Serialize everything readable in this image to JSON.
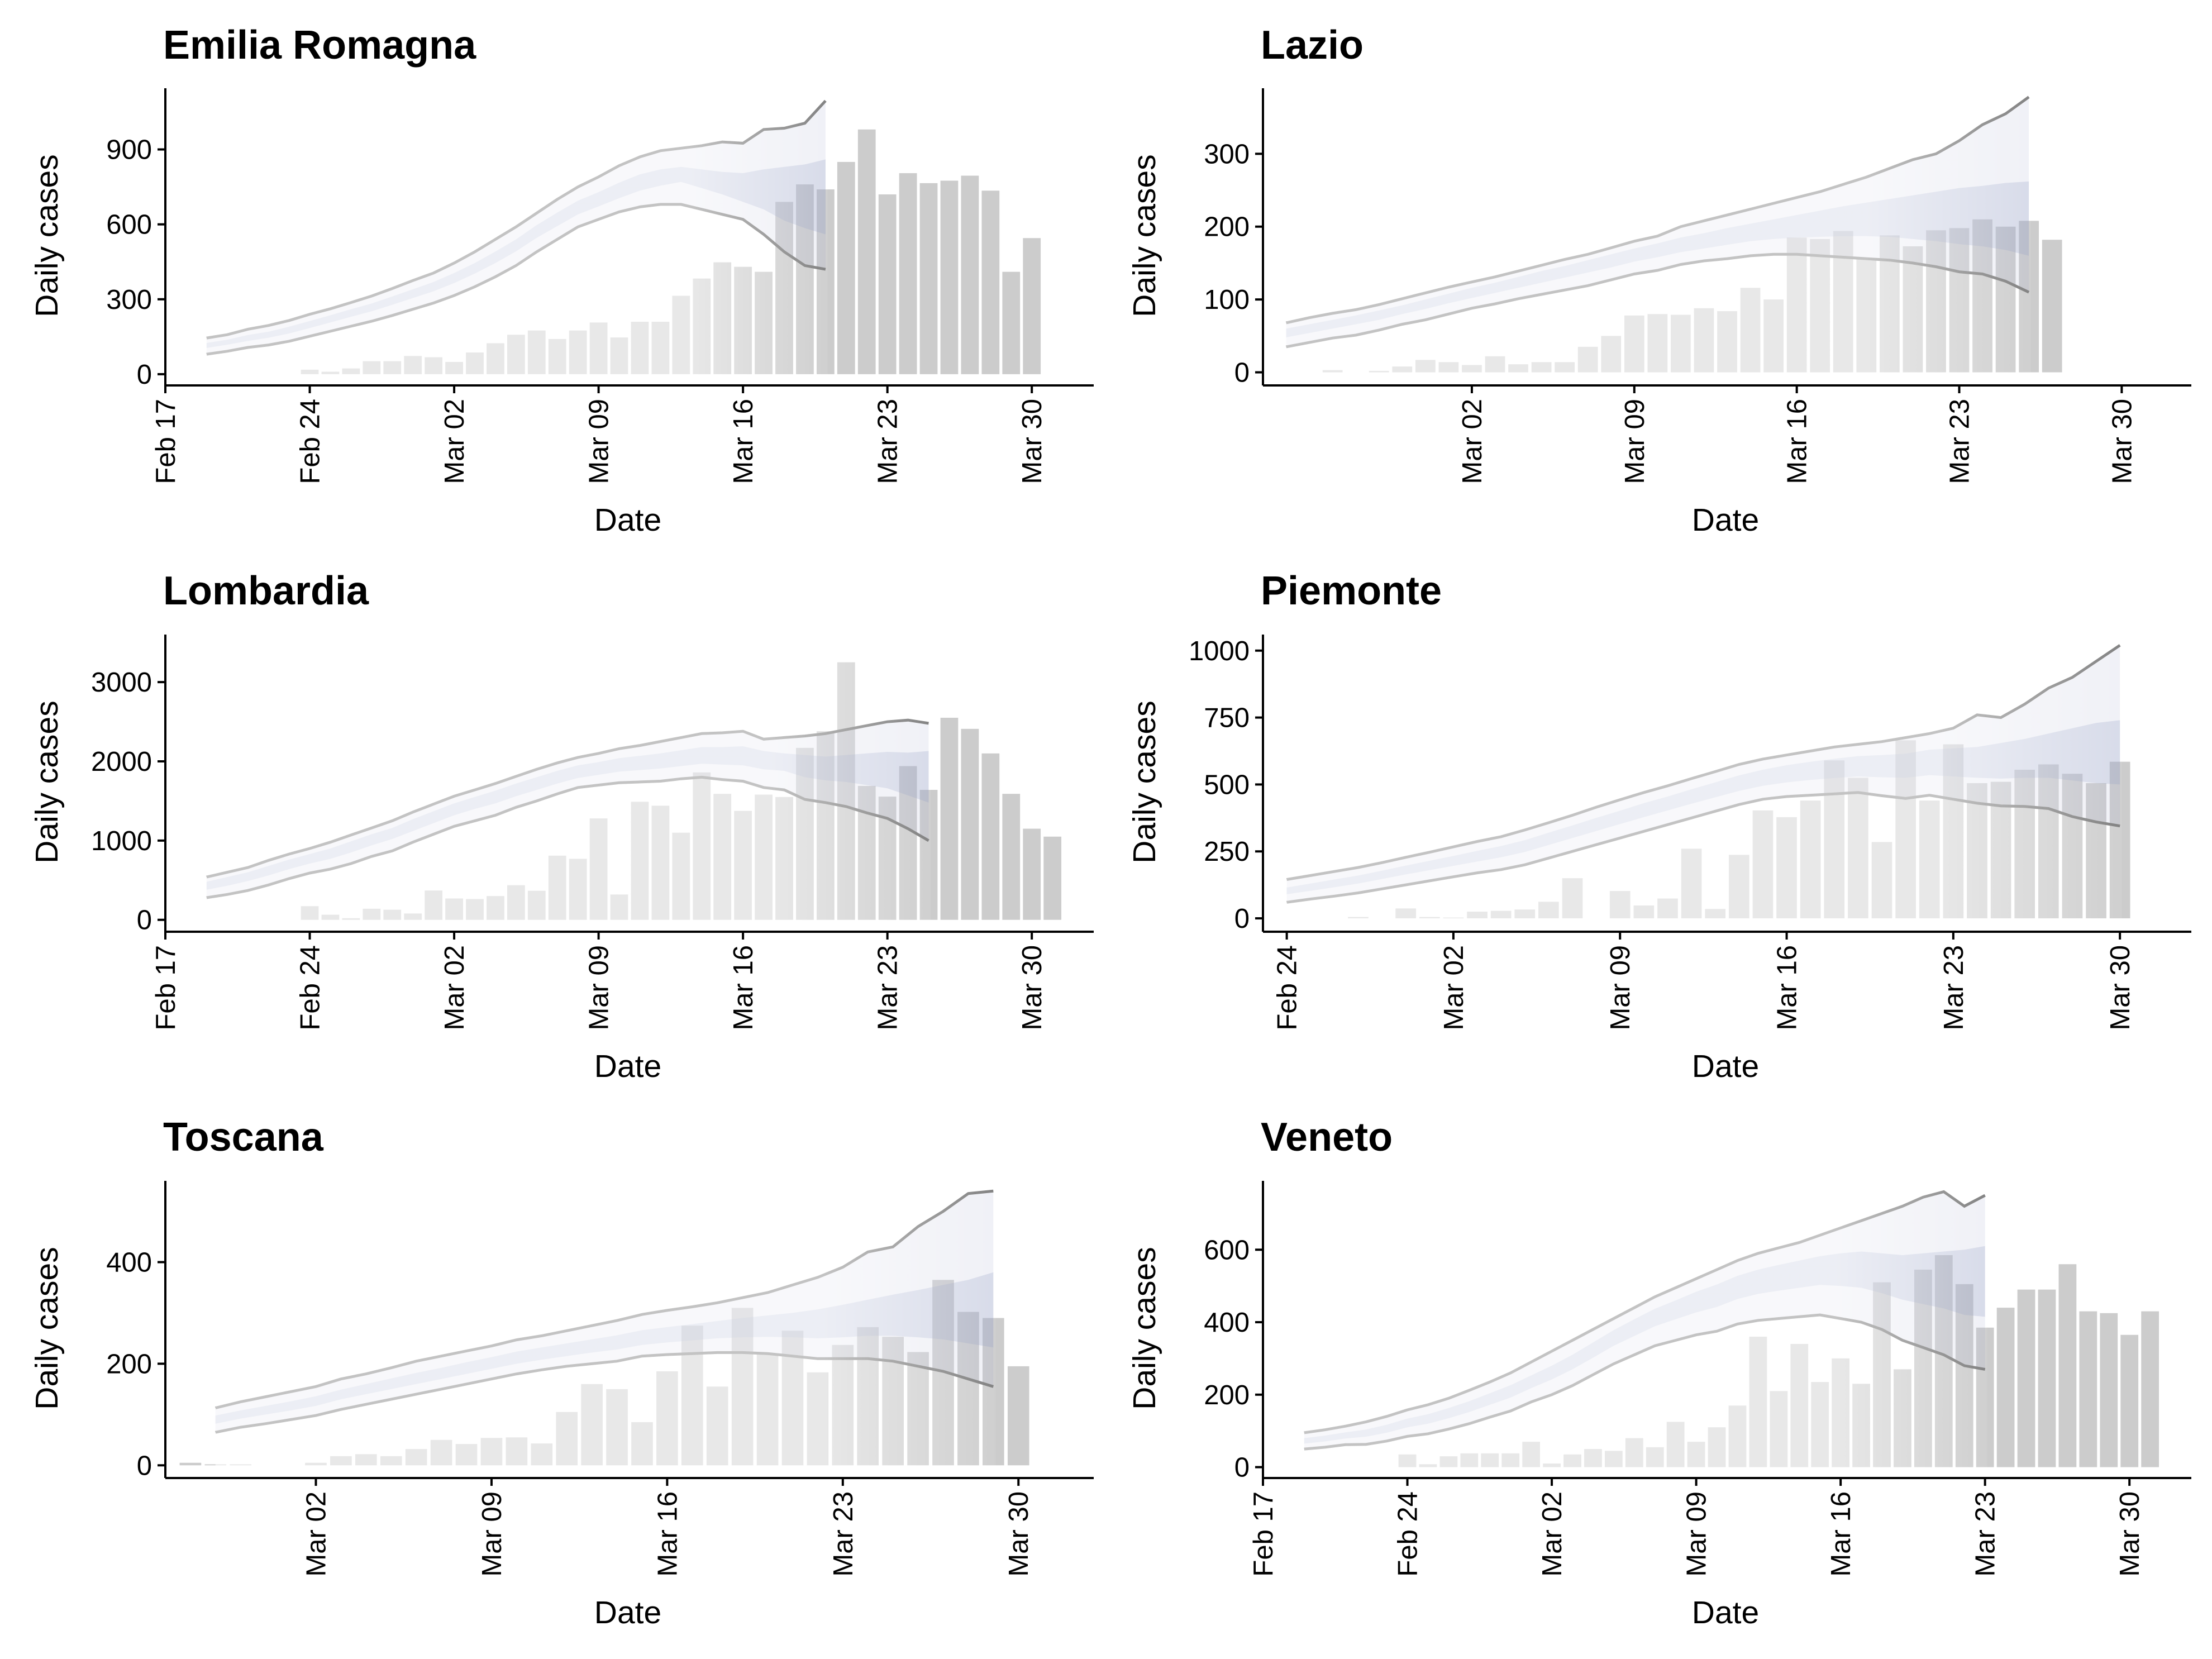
{
  "figure": {
    "ylabel": "Daily cases",
    "xlabel": "Date",
    "bar_color": "#cccccc",
    "band_color": "#8c95c2",
    "line_color": "#7a7a7a"
  },
  "chart_data": [
    {
      "type": "bar",
      "title": "Emilia Romagna",
      "xlabel": "Date",
      "ylabel": "Daily cases",
      "x_ticks": [
        "Feb 17",
        "Feb 24",
        "Mar 02",
        "Mar 09",
        "Mar 16",
        "Mar 23",
        "Mar 30"
      ],
      "y_ticks": [
        0,
        300,
        600,
        900
      ],
      "xlim": [
        "2020-02-17",
        "2020-04-02"
      ],
      "ylim": [
        -45,
        1145
      ],
      "bars": {
        "start": "2020-02-24",
        "values": [
          18,
          10,
          23,
          52,
          52,
          73,
          68,
          49,
          87,
          124,
          158,
          175,
          141,
          175,
          207,
          147,
          210,
          210,
          314,
          383,
          448,
          430,
          410,
          690,
          760,
          740,
          850,
          980,
          720,
          805,
          765,
          775,
          795,
          735,
          410,
          545
        ]
      },
      "estimate": {
        "start": "2020-02-19",
        "lower90": [
          80,
          92,
          107,
          117,
          132,
          152,
          172,
          192,
          212,
          235,
          260,
          285,
          315,
          350,
          390,
          435,
          490,
          540,
          590,
          620,
          650,
          670,
          680,
          680,
          660,
          640,
          620,
          560,
          490,
          435,
          420
        ],
        "lower50": [
          105,
          118,
          133,
          146,
          163,
          185,
          207,
          230,
          252,
          278,
          305,
          332,
          365,
          403,
          445,
          492,
          546,
          593,
          640,
          672,
          705,
          735,
          755,
          770,
          745,
          720,
          690,
          660,
          615,
          585,
          560
        ],
        "upper50": [
          125,
          138,
          157,
          170,
          190,
          213,
          236,
          260,
          283,
          311,
          340,
          369,
          405,
          445,
          491,
          540,
          597,
          647,
          695,
          729,
          767,
          800,
          820,
          830,
          820,
          810,
          805,
          820,
          830,
          840,
          860
        ],
        "upper90": [
          145,
          158,
          180,
          195,
          215,
          240,
          262,
          287,
          313,
          343,
          375,
          405,
          445,
          490,
          540,
          590,
          645,
          700,
          750,
          790,
          835,
          870,
          895,
          905,
          915,
          930,
          925,
          980,
          985,
          1005,
          1095
        ]
      }
    },
    {
      "type": "bar",
      "title": "Lazio",
      "xlabel": "Date",
      "ylabel": "Daily cases",
      "x_ticks": [
        "Mar 02",
        "Mar 09",
        "Mar 16",
        "Mar 23",
        "Mar 30"
      ],
      "y_ticks": [
        0,
        100,
        200,
        300
      ],
      "xlim": [
        "2020-02-22",
        "2020-04-02"
      ],
      "ylim": [
        -18,
        390
      ],
      "bars": {
        "start": "2020-02-25",
        "values": [
          3,
          0,
          2,
          8,
          17,
          14,
          10,
          22,
          11,
          14,
          14,
          35,
          50,
          78,
          80,
          79,
          88,
          84,
          116,
          100,
          185,
          183,
          194,
          157,
          188,
          173,
          195,
          198,
          210,
          200,
          208,
          182
        ]
      },
      "estimate": {
        "start": "2020-02-23",
        "lower90": [
          35,
          41,
          47,
          51,
          58,
          66,
          72,
          80,
          88,
          94,
          101,
          107,
          113,
          119,
          127,
          135,
          140,
          148,
          153,
          156,
          160,
          162,
          162,
          160,
          158,
          156,
          154,
          150,
          145,
          138,
          135,
          125,
          110
        ],
        "lower50": [
          48,
          54,
          60,
          66,
          72,
          80,
          87,
          95,
          102,
          109,
          116,
          123,
          130,
          137,
          144,
          152,
          158,
          165,
          170,
          175,
          180,
          183,
          185,
          186,
          187,
          187,
          186,
          183,
          180,
          176,
          173,
          168,
          160
        ],
        "upper50": [
          60,
          66,
          72,
          78,
          85,
          92,
          100,
          108,
          116,
          123,
          131,
          139,
          146,
          154,
          162,
          170,
          177,
          185,
          191,
          198,
          204,
          210,
          216,
          222,
          228,
          233,
          238,
          243,
          248,
          253,
          256,
          260,
          262
        ],
        "upper90": [
          68,
          75,
          81,
          86,
          93,
          101,
          109,
          117,
          124,
          131,
          139,
          147,
          155,
          162,
          171,
          180,
          187,
          200,
          208,
          216,
          224,
          232,
          240,
          248,
          258,
          268,
          280,
          292,
          300,
          318,
          340,
          355,
          378
        ]
      }
    },
    {
      "type": "bar",
      "title": "Lombardia",
      "xlabel": "Date",
      "ylabel": "Daily cases",
      "x_ticks": [
        "Feb 17",
        "Feb 24",
        "Mar 02",
        "Mar 09",
        "Mar 16",
        "Mar 23",
        "Mar 30"
      ],
      "y_ticks": [
        0,
        1000,
        2000,
        3000
      ],
      "xlim": [
        "2020-02-17",
        "2020-04-02"
      ],
      "ylim": [
        -150,
        3600
      ],
      "bars": {
        "start": "2020-02-24",
        "values": [
          172,
          65,
          20,
          140,
          128,
          80,
          370,
          270,
          262,
          300,
          437,
          367,
          810,
          770,
          1280,
          320,
          1490,
          1440,
          1100,
          1860,
          1590,
          1375,
          1580,
          1550,
          2170,
          2380,
          3250,
          1690,
          1555,
          1940,
          1640,
          2550,
          2410,
          2100,
          1590,
          1150,
          1050
        ]
      },
      "estimate": {
        "start": "2020-02-19",
        "lower90": [
          280,
          320,
          370,
          440,
          520,
          590,
          640,
          710,
          800,
          870,
          980,
          1080,
          1180,
          1250,
          1320,
          1420,
          1500,
          1590,
          1670,
          1700,
          1730,
          1740,
          1750,
          1780,
          1800,
          1770,
          1750,
          1670,
          1640,
          1520,
          1480,
          1430,
          1350,
          1280,
          1150,
          1000
        ],
        "lower50": [
          380,
          430,
          490,
          560,
          640,
          710,
          770,
          850,
          940,
          1020,
          1120,
          1220,
          1320,
          1400,
          1470,
          1560,
          1640,
          1720,
          1790,
          1830,
          1870,
          1890,
          1910,
          1940,
          1970,
          1960,
          1950,
          1900,
          1880,
          1800,
          1760,
          1740,
          1700,
          1660,
          1570,
          1480
        ],
        "upper50": [
          480,
          540,
          600,
          680,
          760,
          830,
          900,
          990,
          1080,
          1160,
          1270,
          1370,
          1470,
          1550,
          1630,
          1720,
          1800,
          1880,
          1950,
          1990,
          2040,
          2070,
          2100,
          2140,
          2180,
          2180,
          2190,
          2130,
          2100,
          2080,
          2060,
          2080,
          2100,
          2120,
          2110,
          2130
        ],
        "upper90": [
          540,
          600,
          660,
          750,
          830,
          900,
          980,
          1070,
          1160,
          1250,
          1360,
          1460,
          1560,
          1640,
          1720,
          1810,
          1900,
          1980,
          2050,
          2100,
          2160,
          2200,
          2250,
          2300,
          2350,
          2360,
          2380,
          2280,
          2300,
          2320,
          2350,
          2400,
          2450,
          2500,
          2520,
          2480
        ]
      }
    },
    {
      "type": "bar",
      "title": "Piemonte",
      "xlabel": "Date",
      "ylabel": "Daily cases",
      "x_ticks": [
        "Feb 24",
        "Mar 02",
        "Mar 09",
        "Mar 16",
        "Mar 23",
        "Mar 30"
      ],
      "y_ticks": [
        0,
        250,
        500,
        750,
        1000
      ],
      "xlim": [
        "2020-02-23",
        "2020-04-02"
      ],
      "ylim": [
        -50,
        1060
      ],
      "bars": {
        "start": "2020-02-27",
        "values": [
          5,
          0,
          37,
          5,
          3,
          25,
          28,
          33,
          62,
          150,
          0,
          102,
          48,
          74,
          260,
          35,
          237,
          403,
          378,
          440,
          590,
          525,
          285,
          665,
          440,
          650,
          505,
          510,
          555,
          575,
          540,
          505,
          585
        ]
      },
      "estimate": {
        "start": "2020-02-24",
        "lower90": [
          60,
          72,
          83,
          95,
          110,
          125,
          140,
          155,
          170,
          182,
          200,
          225,
          250,
          275,
          300,
          325,
          350,
          375,
          400,
          425,
          445,
          455,
          460,
          465,
          470,
          458,
          448,
          460,
          445,
          430,
          420,
          418,
          410,
          380,
          360,
          345
        ],
        "lower50": [
          90,
          103,
          116,
          130,
          147,
          164,
          180,
          196,
          212,
          228,
          248,
          274,
          300,
          326,
          352,
          378,
          403,
          428,
          452,
          476,
          495,
          508,
          517,
          524,
          530,
          527,
          525,
          535,
          530,
          525,
          522,
          525,
          525,
          515,
          505,
          500
        ],
        "upper50": [
          115,
          130,
          145,
          160,
          178,
          197,
          215,
          233,
          252,
          270,
          292,
          320,
          347,
          375,
          402,
          430,
          455,
          482,
          508,
          534,
          555,
          572,
          585,
          596,
          606,
          610,
          615,
          630,
          635,
          640,
          655,
          670,
          690,
          710,
          730,
          740
        ],
        "upper90": [
          145,
          160,
          175,
          190,
          208,
          228,
          247,
          267,
          287,
          305,
          330,
          357,
          385,
          415,
          443,
          470,
          495,
          522,
          548,
          575,
          595,
          610,
          625,
          640,
          650,
          660,
          675,
          690,
          710,
          760,
          750,
          800,
          860,
          900,
          960,
          1020
        ]
      }
    },
    {
      "type": "bar",
      "title": "Toscana",
      "xlabel": "Date",
      "ylabel": "Daily cases",
      "x_ticks": [
        "Mar 02",
        "Mar 09",
        "Mar 16",
        "Mar 23",
        "Mar 30"
      ],
      "y_ticks": [
        0,
        200,
        400
      ],
      "xlim": [
        "2020-02-25",
        "2020-04-02"
      ],
      "ylim": [
        -25,
        560
      ],
      "bars": {
        "start": "2020-02-26",
        "values": [
          5,
          2,
          2,
          0,
          0,
          5,
          18,
          22,
          18,
          32,
          50,
          42,
          54,
          55,
          43,
          105,
          160,
          150,
          85,
          185,
          275,
          155,
          310,
          220,
          265,
          183,
          237,
          272,
          253,
          223,
          365,
          302,
          290,
          195
        ]
      },
      "estimate": {
        "start": "2020-02-27",
        "lower90": [
          65,
          75,
          82,
          90,
          98,
          110,
          120,
          130,
          140,
          150,
          160,
          170,
          180,
          188,
          195,
          200,
          205,
          215,
          218,
          220,
          222,
          222,
          220,
          215,
          210,
          210,
          210,
          205,
          195,
          185,
          170,
          155
        ],
        "lower50": [
          82,
          92,
          100,
          108,
          117,
          130,
          140,
          150,
          160,
          170,
          180,
          190,
          200,
          208,
          215,
          222,
          228,
          237,
          242,
          246,
          250,
          252,
          253,
          252,
          250,
          252,
          255,
          255,
          252,
          248,
          240,
          232
        ],
        "upper50": [
          98,
          108,
          117,
          126,
          136,
          149,
          160,
          171,
          182,
          192,
          203,
          213,
          224,
          232,
          240,
          248,
          256,
          266,
          272,
          278,
          284,
          290,
          295,
          300,
          307,
          316,
          326,
          336,
          345,
          355,
          365,
          380
        ],
        "upper90": [
          113,
          125,
          135,
          145,
          155,
          170,
          180,
          192,
          205,
          215,
          225,
          235,
          247,
          255,
          265,
          275,
          285,
          297,
          305,
          312,
          320,
          330,
          340,
          355,
          370,
          390,
          420,
          430,
          470,
          500,
          535,
          540
        ]
      }
    },
    {
      "type": "bar",
      "title": "Veneto",
      "xlabel": "Date",
      "ylabel": "Daily cases",
      "x_ticks": [
        "Feb 17",
        "Feb 24",
        "Mar 02",
        "Mar 09",
        "Mar 16",
        "Mar 23",
        "Mar 30"
      ],
      "y_ticks": [
        0,
        200,
        400,
        600
      ],
      "xlim": [
        "2020-02-17",
        "2020-04-02"
      ],
      "ylim": [
        -30,
        790
      ],
      "bars": {
        "start": "2020-02-24",
        "values": [
          35,
          8,
          30,
          38,
          38,
          38,
          70,
          10,
          35,
          50,
          45,
          80,
          55,
          125,
          70,
          110,
          170,
          360,
          210,
          340,
          235,
          300,
          230,
          510,
          270,
          545,
          585,
          505,
          385,
          440,
          490,
          490,
          560,
          430,
          425,
          365,
          430
        ]
      },
      "estimate": {
        "start": "2020-02-19",
        "lower90": [
          50,
          55,
          62,
          63,
          72,
          85,
          92,
          105,
          120,
          138,
          155,
          180,
          200,
          225,
          255,
          285,
          310,
          335,
          350,
          365,
          375,
          395,
          405,
          410,
          415,
          420,
          410,
          400,
          380,
          350,
          330,
          310,
          280,
          270
        ],
        "lower50": [
          65,
          71,
          79,
          84,
          95,
          110,
          120,
          135,
          152,
          172,
          192,
          218,
          242,
          270,
          302,
          335,
          362,
          389,
          408,
          427,
          442,
          464,
          478,
          487,
          495,
          503,
          500,
          495,
          480,
          462,
          450,
          438,
          420,
          415
        ],
        "upper50": [
          80,
          87,
          96,
          104,
          117,
          134,
          146,
          163,
          182,
          204,
          226,
          253,
          280,
          310,
          344,
          378,
          408,
          437,
          460,
          484,
          504,
          528,
          545,
          558,
          570,
          582,
          590,
          595,
          590,
          585,
          590,
          595,
          600,
          610
        ],
        "upper90": [
          95,
          103,
          113,
          125,
          140,
          158,
          172,
          190,
          212,
          235,
          260,
          290,
          320,
          350,
          380,
          410,
          440,
          470,
          495,
          520,
          545,
          570,
          590,
          605,
          620,
          640,
          660,
          680,
          700,
          720,
          745,
          760,
          720,
          750
        ]
      }
    }
  ]
}
